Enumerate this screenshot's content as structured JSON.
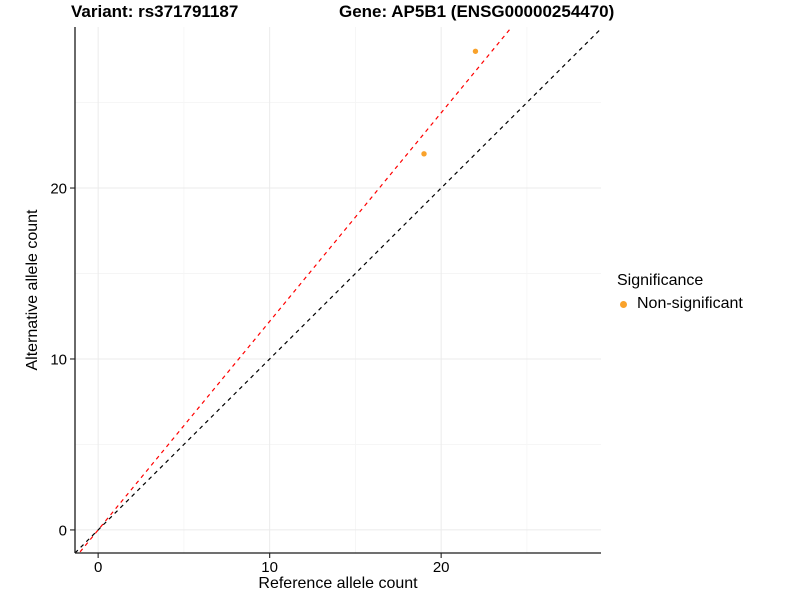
{
  "chart_data": {
    "type": "scatter",
    "titles": {
      "left": "Variant: rs371791187",
      "right": "Gene: AP5B1 (ENSG00000254470)"
    },
    "xlabel": "Reference allele count",
    "ylabel": "Alternative allele count",
    "xlim": [
      -1.35,
      29.32
    ],
    "ylim": [
      -1.35,
      29.42
    ],
    "x_major_ticks": [
      0,
      10,
      20
    ],
    "y_major_ticks": [
      0,
      10,
      20
    ],
    "x_minor_ticks": [
      5,
      15,
      25
    ],
    "y_minor_ticks": [
      5,
      15,
      25
    ],
    "grid": true,
    "legend_position": "right",
    "series": [
      {
        "name": "Non-significant",
        "color": "#F9A22B",
        "points": [
          [
            22,
            28
          ],
          [
            19,
            22
          ]
        ]
      }
    ],
    "lines": [
      {
        "name": "identity-line",
        "slope": 1.0,
        "intercept": 0,
        "color": "#000000",
        "dashed": true
      },
      {
        "name": "regression-line",
        "slope": 1.22,
        "intercept": 0,
        "color": "#FF0000",
        "dashed": true
      }
    ],
    "legend": {
      "title": "Significance",
      "items": [
        {
          "label": "Non-significant",
          "color": "#F9A22B"
        }
      ]
    }
  },
  "colors": {
    "grid_major": "#EBEBEB",
    "grid_minor": "#F5F5F5",
    "axis_line": "#1A1A1A",
    "tick_mark": "#333333",
    "text": "#000000"
  }
}
